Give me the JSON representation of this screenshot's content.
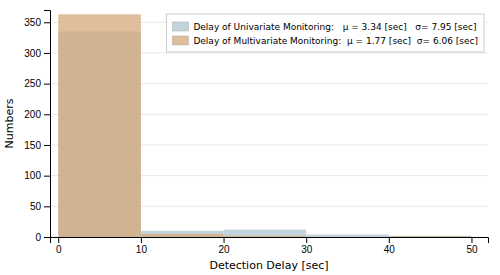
{
  "chart_data": {
    "type": "histogram",
    "x_label": "Detection Delay [sec]",
    "y_label": "Numbers",
    "bins": [
      0,
      10,
      20,
      30,
      40,
      50
    ],
    "series": [
      {
        "name": "Delay of Univariate Monitoring:   μ = 3.34 [sec]   σ= 7.95 [sec]",
        "color": "#aec6cf",
        "values": [
          335,
          10,
          12,
          4,
          2
        ]
      },
      {
        "name": "Delay of Multivariate Monitoring:  μ = 1.77 [sec]  σ= 6.06 [sec]",
        "color": "#d4a97a",
        "values": [
          363,
          5,
          2,
          0,
          1
        ]
      }
    ],
    "xlim": [
      -1,
      52
    ],
    "ylim": [
      0,
      370
    ],
    "xticks": [
      0,
      10,
      20,
      30,
      40,
      50
    ],
    "yticks": [
      0,
      50,
      100,
      150,
      200,
      250,
      300,
      350
    ],
    "grid": true,
    "legend": "top-right"
  }
}
